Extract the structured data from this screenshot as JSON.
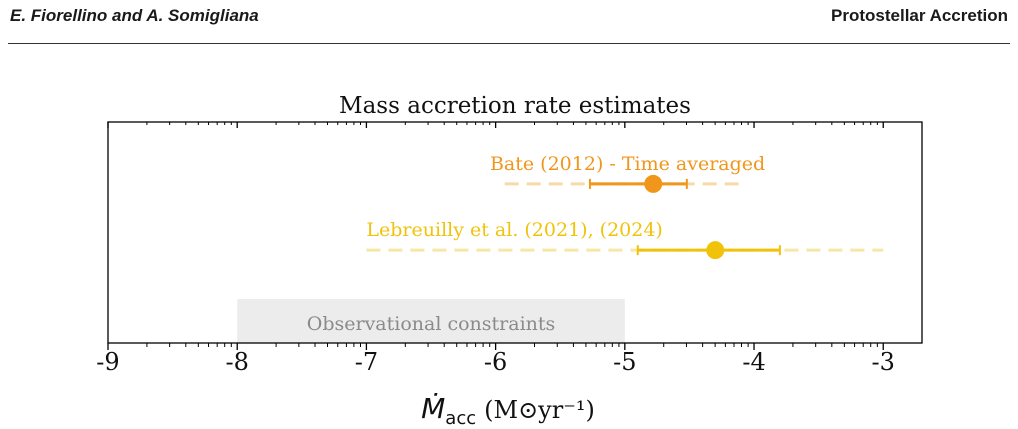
{
  "header": {
    "authors": "E. Fiorellino and A. Somigliana",
    "section": "Protostellar Accretion"
  },
  "colors": {
    "bate": "#f0961a",
    "bate_light": "#f8d9a8",
    "lebreuilly": "#f0c30a",
    "lebreuilly_light": "#f8e6a6",
    "obs_band": "#ececec",
    "obs_text": "#8a8a8a"
  },
  "chart_data": {
    "type": "scatter",
    "title": "Mass accretion rate estimates",
    "xlabel_main": "Ṁ",
    "xlabel_sub": "acc",
    "xlabel_units": "(M⊙yr⁻¹)",
    "xlim": [
      -9,
      -2.7
    ],
    "xticks": [
      -9,
      -8,
      -7,
      -6,
      -5,
      -4,
      -3
    ],
    "xtick_labels": [
      "-9",
      "-8",
      "-7",
      "-6",
      "-5",
      "-4",
      "-3"
    ],
    "grid": false,
    "series": [
      {
        "name": "Bate (2012) - Time averaged",
        "center": -4.78,
        "err_low": -5.27,
        "err_high": -4.52,
        "range_low": -5.93,
        "range_high": -4.12,
        "level": 0.72,
        "color_key": "bate"
      },
      {
        "name": "Lebreuilly et al. (2021), (2024)",
        "center": -4.3,
        "err_low": -4.9,
        "err_high": -3.8,
        "range_low": -7.0,
        "range_high": -3.0,
        "level": 0.42,
        "color_key": "lebreuilly"
      }
    ],
    "band": {
      "label": "Observational constraints",
      "x_low": -8.0,
      "x_high": -5.0
    }
  }
}
